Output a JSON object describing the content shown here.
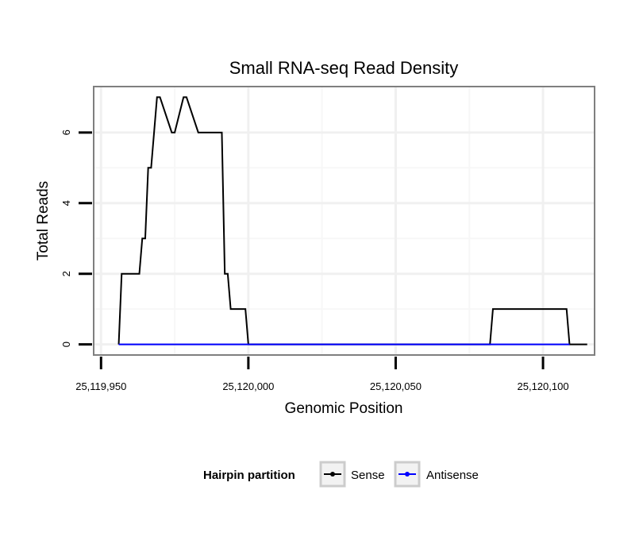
{
  "chart_data": {
    "type": "line",
    "title": "Small RNA-seq Read Density",
    "xlabel": "Genomic Position",
    "ylabel": "Total Reads",
    "xlim": [
      25119947.5,
      25120117.5
    ],
    "ylim": [
      -0.3,
      7.3
    ],
    "x_ticks": [
      25119950,
      25120000,
      25120050,
      25120100
    ],
    "x_tick_labels": [
      "25,119,950",
      "25,120,000",
      "25,120,050",
      "25,120,100"
    ],
    "y_ticks": [
      0,
      2,
      4,
      6
    ],
    "y_tick_labels": [
      "0",
      "2",
      "4",
      "6"
    ],
    "x_minor_gridlines": [
      25119975,
      25120025,
      25120075
    ],
    "y_minor_gridlines": [
      1,
      3,
      5
    ],
    "grid": true,
    "legend": {
      "title": "Hairpin partition",
      "placement": "bottom",
      "entries": [
        "Sense",
        "Antisense"
      ]
    },
    "series": [
      {
        "name": "Sense",
        "color": "#000000",
        "x": [
          25119956,
          25119957,
          25119963,
          25119964,
          25119965,
          25119966,
          25119967,
          25119968,
          25119969,
          25119970,
          25119974,
          25119975,
          25119978,
          25119979,
          25119983,
          25119984,
          25119991,
          25119992,
          25119993,
          25119994,
          25119999,
          25120000,
          25120082,
          25120083,
          25120108,
          25120109,
          25120115
        ],
        "values": [
          0,
          2,
          2,
          3,
          3,
          5,
          5,
          6,
          7,
          7,
          6,
          6,
          7,
          7,
          6,
          6,
          6,
          2,
          2,
          1,
          1,
          0,
          0,
          1,
          1,
          0,
          0
        ]
      },
      {
        "name": "Antisense",
        "color": "#0000ff",
        "x": [
          25119956,
          25120000,
          25120082,
          25120109
        ],
        "values": [
          0,
          0,
          0,
          0
        ]
      }
    ]
  }
}
